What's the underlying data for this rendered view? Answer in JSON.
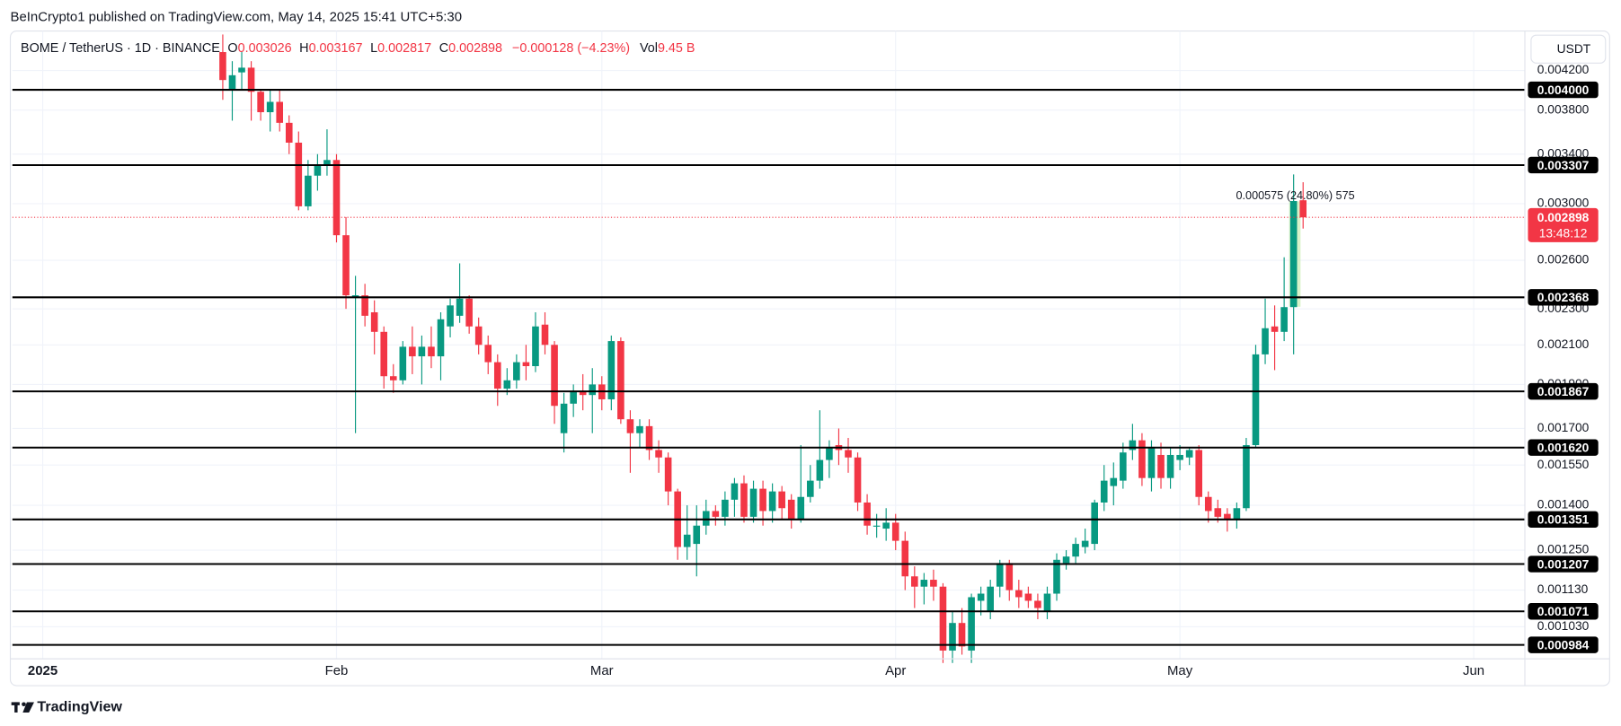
{
  "header": {
    "published": "BeInCrypto1 published on TradingView.com, May 14, 2025 15:41 UTC+5:30",
    "symbol": "BOME / TetherUS · 1D · BINANCE",
    "ohlc": [
      {
        "key": "O",
        "value": "0.003026"
      },
      {
        "key": "H",
        "value": "0.003167"
      },
      {
        "key": "L",
        "value": "0.002817"
      },
      {
        "key": "C",
        "value": "0.002898"
      }
    ],
    "change": "−0.000128 (−4.23%)",
    "volume": {
      "key": "Vol",
      "value": "9.45 B"
    },
    "currency": "USDT"
  },
  "footer": {
    "brand": "TradingView"
  },
  "chart_data": {
    "type": "candlestick",
    "log_scale": true,
    "grid": true,
    "up_color": "#089981",
    "down_color": "#f23645",
    "level_color": "#000000",
    "xlim": [
      -2.2,
      157.4
    ],
    "xticks": [
      {
        "value": 1,
        "label": "2025"
      },
      {
        "value": 32,
        "label": "Feb"
      },
      {
        "value": 60,
        "label": "Mar"
      },
      {
        "value": 91,
        "label": "Apr"
      },
      {
        "value": 121,
        "label": "May"
      },
      {
        "value": 152,
        "label": "Jun"
      }
    ],
    "ylim": [
      0.00095,
      0.00464
    ],
    "yticks": [
      {
        "value": 0.0042,
        "label": "0.004200"
      },
      {
        "value": 0.0038,
        "label": "0.003800"
      },
      {
        "value": 0.0034,
        "label": "0.003400"
      },
      {
        "value": 0.003,
        "label": "0.003000"
      },
      {
        "value": 0.0026,
        "label": "0.002600"
      },
      {
        "value": 0.0023,
        "label": "0.002300"
      },
      {
        "value": 0.0021,
        "label": "0.002100"
      },
      {
        "value": 0.0019,
        "label": "0.001900"
      },
      {
        "value": 0.0017,
        "label": "0.001700"
      },
      {
        "value": 0.00155,
        "label": "0.001550"
      },
      {
        "value": 0.0014,
        "label": "0.001400"
      },
      {
        "value": 0.00125,
        "label": "0.001250"
      },
      {
        "value": 0.00113,
        "label": "0.001130"
      },
      {
        "value": 0.00103,
        "label": "0.001030"
      }
    ],
    "levels": [
      {
        "value": 0.004,
        "label": "0.004000"
      },
      {
        "value": 0.003307,
        "label": "0.003307"
      },
      {
        "value": 0.002368,
        "label": "0.002368"
      },
      {
        "value": 0.001867,
        "label": "0.001867"
      },
      {
        "value": 0.00162,
        "label": "0.001620"
      },
      {
        "value": 0.001351,
        "label": "0.001351"
      },
      {
        "value": 0.001207,
        "label": "0.001207"
      },
      {
        "value": 0.001071,
        "label": "0.001071"
      },
      {
        "value": 0.000984,
        "label": "0.000984"
      }
    ],
    "last_price": {
      "value": 0.002898,
      "label": "0.002898",
      "countdown": "13:48:12"
    },
    "annotation": "0.000575 (24.80%) 575",
    "x": [
      20,
      21,
      22,
      23,
      24,
      25,
      26,
      27,
      28,
      29,
      30,
      31,
      32,
      33,
      34,
      35,
      36,
      37,
      38,
      39,
      40,
      41,
      42,
      43,
      44,
      45,
      46,
      47,
      48,
      49,
      50,
      51,
      52,
      53,
      54,
      55,
      56,
      57,
      58,
      59,
      60,
      61,
      62,
      63,
      64,
      65,
      66,
      67,
      68,
      69,
      70,
      71,
      72,
      73,
      74,
      75,
      76,
      77,
      78,
      79,
      80,
      81,
      82,
      83,
      84,
      85,
      86,
      87,
      88,
      89,
      90,
      91,
      92,
      93,
      94,
      95,
      96,
      97,
      98,
      99,
      100,
      101,
      102,
      103,
      104,
      105,
      106,
      107,
      108,
      109,
      110,
      111,
      112,
      113,
      114,
      115,
      116,
      117,
      118,
      119,
      120,
      121,
      122,
      123,
      124,
      125,
      126,
      127,
      128,
      129,
      130,
      131,
      132,
      133,
      134
    ],
    "open": [
      0.0044,
      0.004,
      0.00418,
      0.00423,
      0.00398,
      0.00378,
      0.00388,
      0.00368,
      0.0035,
      0.00298,
      0.00322,
      0.0033,
      0.00335,
      0.00277,
      0.00237,
      0.00238,
      0.00228,
      0.00217,
      0.00194,
      0.00192,
      0.00209,
      0.00204,
      0.00209,
      0.00204,
      0.0022,
      0.00226,
      0.00236,
      0.0022,
      0.0021,
      0.00201,
      0.00188,
      0.00192,
      0.00201,
      0.00199,
      0.00221,
      0.0021,
      0.00168,
      0.00181,
      0.00187,
      0.00185,
      0.0019,
      0.00183,
      0.00212,
      0.00174,
      0.00168,
      0.00171,
      0.00161,
      0.00158,
      0.00145,
      0.00126,
      0.00127,
      0.00133,
      0.00138,
      0.00136,
      0.00142,
      0.00148,
      0.00136,
      0.00146,
      0.00138,
      0.00145,
      0.00142,
      0.00135,
      0.00143,
      0.00149,
      0.00157,
      0.00163,
      0.00161,
      0.00158,
      0.00141,
      0.00133,
      0.00132,
      0.00134,
      0.00128,
      0.00117,
      0.00114,
      0.00116,
      0.00114,
      0.00097,
      0.00104,
      0.00097,
      0.0011,
      0.00107,
      0.00114,
      0.00121,
      0.00113,
      0.00112,
      0.0011,
      0.00107,
      0.00112,
      0.00121,
      0.00123,
      0.00126,
      0.00127,
      0.00141,
      0.00147,
      0.00149,
      0.00161,
      0.00165,
      0.0015,
      0.00159,
      0.0015,
      0.00157,
      0.00158,
      0.00161,
      0.00143,
      0.00139,
      0.00137,
      0.00135,
      0.00139,
      0.00163,
      0.00205,
      0.0022,
      0.00217,
      0.00231,
      0.003026
    ],
    "high": [
      0.0046,
      0.0043,
      0.0044,
      0.0043,
      0.004,
      0.004,
      0.004,
      0.00375,
      0.0036,
      0.00335,
      0.0034,
      0.00362,
      0.0034,
      0.0029,
      0.0025,
      0.00245,
      0.00235,
      0.0022,
      0.002,
      0.00212,
      0.0022,
      0.00215,
      0.0022,
      0.00228,
      0.00236,
      0.00258,
      0.00238,
      0.00225,
      0.00215,
      0.00205,
      0.00198,
      0.00205,
      0.0021,
      0.00228,
      0.00228,
      0.00212,
      0.00186,
      0.0019,
      0.00195,
      0.00198,
      0.00194,
      0.00215,
      0.00214,
      0.00178,
      0.00174,
      0.00174,
      0.00165,
      0.0016,
      0.00146,
      0.0014,
      0.0014,
      0.00142,
      0.0014,
      0.00145,
      0.0015,
      0.00151,
      0.00149,
      0.00149,
      0.00148,
      0.00147,
      0.00144,
      0.00163,
      0.00155,
      0.00178,
      0.00165,
      0.0017,
      0.00166,
      0.0016,
      0.00144,
      0.00137,
      0.00139,
      0.00137,
      0.00131,
      0.0012,
      0.00118,
      0.00119,
      0.00115,
      0.00107,
      0.00108,
      0.00112,
      0.00114,
      0.00116,
      0.00122,
      0.00122,
      0.00116,
      0.00114,
      0.00112,
      0.00114,
      0.00124,
      0.00125,
      0.00129,
      0.00132,
      0.00142,
      0.00155,
      0.00156,
      0.00164,
      0.00172,
      0.00168,
      0.00165,
      0.00164,
      0.00162,
      0.00163,
      0.00162,
      0.00163,
      0.00145,
      0.00142,
      0.00139,
      0.00141,
      0.00166,
      0.0021,
      0.00236,
      0.00232,
      0.00262,
      0.00323,
      0.003167
    ],
    "low": [
      0.0039,
      0.0037,
      0.004,
      0.0037,
      0.0037,
      0.0036,
      0.0036,
      0.0034,
      0.00295,
      0.00295,
      0.0031,
      0.00322,
      0.00272,
      0.0023,
      0.00168,
      0.0022,
      0.00205,
      0.00188,
      0.00186,
      0.0019,
      0.00195,
      0.0019,
      0.00198,
      0.00192,
      0.00214,
      0.00222,
      0.00216,
      0.00205,
      0.00195,
      0.0018,
      0.00185,
      0.00188,
      0.00192,
      0.00196,
      0.00205,
      0.00172,
      0.0016,
      0.00175,
      0.00178,
      0.00168,
      0.00178,
      0.00178,
      0.00172,
      0.00152,
      0.00162,
      0.00157,
      0.00152,
      0.0014,
      0.00122,
      0.00122,
      0.00117,
      0.0013,
      0.00133,
      0.00133,
      0.00136,
      0.00134,
      0.00134,
      0.00133,
      0.00134,
      0.00135,
      0.00132,
      0.00134,
      0.00141,
      0.00146,
      0.0015,
      0.00155,
      0.00152,
      0.00138,
      0.0013,
      0.00129,
      0.00128,
      0.00125,
      0.00113,
      0.00108,
      0.00109,
      0.0011,
      0.00094,
      0.00094,
      0.00096,
      0.00094,
      0.00106,
      0.00105,
      0.00111,
      0.0011,
      0.00108,
      0.00108,
      0.00105,
      0.00105,
      0.0011,
      0.00119,
      0.00121,
      0.00124,
      0.00125,
      0.00138,
      0.0014,
      0.00146,
      0.00157,
      0.00147,
      0.00145,
      0.00146,
      0.00146,
      0.00153,
      0.00155,
      0.0014,
      0.00134,
      0.00134,
      0.00131,
      0.00132,
      0.00138,
      0.00162,
      0.002,
      0.00197,
      0.00212,
      0.00205,
      0.002817
    ],
    "close": [
      0.0041,
      0.00415,
      0.00423,
      0.00398,
      0.00378,
      0.00388,
      0.00368,
      0.0035,
      0.00298,
      0.00322,
      0.0033,
      0.00335,
      0.00277,
      0.00238,
      0.00238,
      0.00226,
      0.00217,
      0.00194,
      0.00192,
      0.00209,
      0.00204,
      0.00209,
      0.00204,
      0.00224,
      0.00232,
      0.00236,
      0.0022,
      0.0021,
      0.00201,
      0.00188,
      0.00192,
      0.00201,
      0.00199,
      0.0022,
      0.0021,
      0.0018,
      0.00181,
      0.00187,
      0.00185,
      0.0019,
      0.00183,
      0.00212,
      0.00174,
      0.00168,
      0.00171,
      0.00161,
      0.00158,
      0.00145,
      0.00126,
      0.0013,
      0.00133,
      0.00138,
      0.00136,
      0.00142,
      0.00148,
      0.00136,
      0.00146,
      0.00138,
      0.00145,
      0.00139,
      0.00135,
      0.00143,
      0.00149,
      0.00157,
      0.00162,
      0.00161,
      0.00158,
      0.00141,
      0.00133,
      0.00133,
      0.00134,
      0.00128,
      0.00117,
      0.00114,
      0.00116,
      0.00114,
      0.00097,
      0.00104,
      0.00098,
      0.00111,
      0.00112,
      0.00114,
      0.00121,
      0.00113,
      0.00111,
      0.0011,
      0.00108,
      0.00112,
      0.00122,
      0.00123,
      0.00127,
      0.00128,
      0.00141,
      0.00149,
      0.0015,
      0.0016,
      0.00165,
      0.0015,
      0.00162,
      0.0015,
      0.00159,
      0.00159,
      0.00161,
      0.00143,
      0.00138,
      0.00136,
      0.00135,
      0.00139,
      0.00163,
      0.00205,
      0.00219,
      0.00217,
      0.00231,
      0.00302,
      0.002898
    ]
  }
}
